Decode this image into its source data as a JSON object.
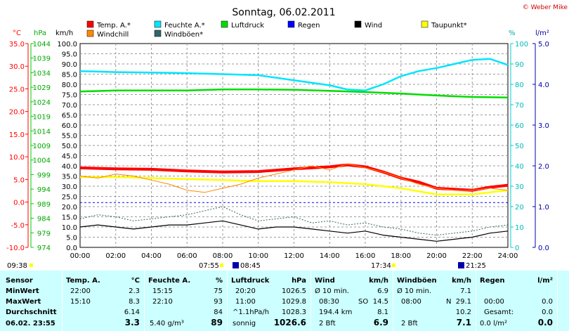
{
  "title": "Sonntag, 06.02.2011",
  "copyright": "© Weber Mike",
  "axis_units": {
    "celsius": "°C",
    "hpa": "hPa",
    "kmh": "km/h",
    "percent": "%",
    "rain": "l/m²",
    "rain_right": "l/m²"
  },
  "legend": [
    {
      "label": "Temp. A.*",
      "color": "#ff0000"
    },
    {
      "label": "Feuchte A.*",
      "color": "#00e5ff"
    },
    {
      "label": "Luftdruck",
      "color": "#00dd00"
    },
    {
      "label": "Regen",
      "color": "#0000ff"
    },
    {
      "label": "Wind",
      "color": "#000000"
    },
    {
      "label": "Taupunkt*",
      "color": "#ffff00"
    },
    {
      "label": "Windchill",
      "color": "#ff8800"
    },
    {
      "label": "Windböen*",
      "color": "#336666"
    }
  ],
  "markers": {
    "sunrise_left": "09:38",
    "sunrise": "07:55",
    "sun_left_time": "08:45",
    "sunset": "17:34",
    "sun_right_time": "21:25"
  },
  "chart_data": {
    "type": "line",
    "x_ticks": [
      "00:00",
      "02:00",
      "04:00",
      "06:00",
      "08:00",
      "10:00",
      "12:00",
      "14:00",
      "16:00",
      "18:00",
      "20:00",
      "22:00",
      "24:00"
    ],
    "y_ticks_celsius": [
      "35.0",
      "30.0",
      "25.0",
      "20.0",
      "15.0",
      "10.0",
      "5.0",
      "0.0",
      "-5.0",
      "-10.0"
    ],
    "y_ticks_hpa": [
      "1044",
      "1039",
      "1034",
      "1029",
      "1024",
      "1019",
      "1014",
      "1009",
      "1004",
      "999",
      "994",
      "989",
      "984",
      "979",
      "974"
    ],
    "y_ticks_kmh": [
      "100.0",
      "95.0",
      "90.0",
      "85.0",
      "80.0",
      "75.0",
      "70.0",
      "65.0",
      "60.0",
      "55.0",
      "50.0",
      "45.0",
      "40.0",
      "35.0",
      "30.0",
      "25.0",
      "20.0",
      "15.0",
      "10.0",
      "5.0",
      "0.0"
    ],
    "y_ticks_percent": [
      "100",
      "90",
      "80",
      "70",
      "60",
      "50",
      "40",
      "30",
      "20",
      "10",
      "0"
    ],
    "y_ticks_rain": [
      "5.0",
      "4.0",
      "3.0",
      "2.0",
      "1.0",
      "0.0"
    ],
    "kmh_range": [
      0,
      100
    ],
    "x_range": [
      0,
      24
    ],
    "series": [
      {
        "name": "Temp. A.*",
        "unit": "km/h-scale",
        "color": "#ff0000",
        "points": [
          [
            0,
            39
          ],
          [
            2,
            38.5
          ],
          [
            4,
            38.3
          ],
          [
            6,
            37.5
          ],
          [
            8,
            37
          ],
          [
            10,
            37.2
          ],
          [
            12,
            38.5
          ],
          [
            14,
            39.5
          ],
          [
            15,
            40.5
          ],
          [
            16,
            39.5
          ],
          [
            17,
            37
          ],
          [
            18,
            34
          ],
          [
            19,
            32
          ],
          [
            20,
            29
          ],
          [
            22,
            28
          ],
          [
            23,
            29.5
          ],
          [
            24,
            30.5
          ]
        ]
      },
      {
        "name": "Feuchte A.*",
        "unit": "km/h-scale",
        "color": "#00e5ff",
        "points": [
          [
            0,
            86.5
          ],
          [
            2,
            86
          ],
          [
            4,
            85.8
          ],
          [
            6,
            85.5
          ],
          [
            8,
            85
          ],
          [
            10,
            84.5
          ],
          [
            12,
            82
          ],
          [
            14,
            79.5
          ],
          [
            15,
            77.5
          ],
          [
            16,
            77
          ],
          [
            17,
            80
          ],
          [
            18,
            84
          ],
          [
            19,
            86.5
          ],
          [
            20,
            88
          ],
          [
            21,
            90
          ],
          [
            22,
            92
          ],
          [
            23,
            92.5
          ],
          [
            24,
            89.5
          ]
        ]
      },
      {
        "name": "Luftdruck",
        "unit": "km/h-scale",
        "color": "#00dd00",
        "points": [
          [
            0,
            76.5
          ],
          [
            2,
            77
          ],
          [
            4,
            77
          ],
          [
            6,
            77
          ],
          [
            8,
            77.5
          ],
          [
            10,
            77.5
          ],
          [
            12,
            77.3
          ],
          [
            14,
            76.8
          ],
          [
            16,
            76.2
          ],
          [
            18,
            75.5
          ],
          [
            20,
            74.5
          ],
          [
            22,
            73.8
          ],
          [
            24,
            73.5
          ]
        ]
      },
      {
        "name": "Taupunkt*",
        "unit": "km/h-scale",
        "color": "#ffff00",
        "points": [
          [
            0,
            34.5
          ],
          [
            2,
            34.5
          ],
          [
            4,
            34
          ],
          [
            6,
            33.5
          ],
          [
            8,
            33
          ],
          [
            10,
            32.5
          ],
          [
            12,
            32.5
          ],
          [
            14,
            32
          ],
          [
            16,
            31
          ],
          [
            18,
            29
          ],
          [
            20,
            26
          ],
          [
            22,
            26
          ],
          [
            24,
            28
          ]
        ]
      },
      {
        "name": "Windchill",
        "unit": "km/h-scale",
        "color": "#ff8800",
        "points": [
          [
            0,
            35
          ],
          [
            1,
            34
          ],
          [
            2,
            36
          ],
          [
            3,
            35
          ],
          [
            4,
            33
          ],
          [
            5,
            31
          ],
          [
            6,
            28
          ],
          [
            7,
            27
          ],
          [
            8,
            29
          ],
          [
            9,
            31
          ],
          [
            10,
            34
          ],
          [
            11,
            36
          ],
          [
            12,
            38
          ],
          [
            13,
            40
          ],
          [
            14,
            38
          ],
          [
            15,
            41
          ],
          [
            16,
            39
          ],
          [
            17,
            37
          ],
          [
            18,
            34
          ],
          [
            19,
            31
          ],
          [
            20,
            29
          ],
          [
            21,
            28
          ],
          [
            22,
            28
          ],
          [
            23,
            29
          ],
          [
            24,
            28
          ]
        ]
      },
      {
        "name": "Windböen*",
        "unit": "km/h-scale",
        "color": "#336666",
        "points": [
          [
            0,
            14
          ],
          [
            1,
            16
          ],
          [
            2,
            15
          ],
          [
            3,
            13
          ],
          [
            4,
            14
          ],
          [
            5,
            15
          ],
          [
            6,
            16
          ],
          [
            7,
            18
          ],
          [
            8,
            20
          ],
          [
            9,
            16
          ],
          [
            10,
            13
          ],
          [
            11,
            14
          ],
          [
            12,
            15
          ],
          [
            13,
            12
          ],
          [
            14,
            13
          ],
          [
            15,
            11
          ],
          [
            16,
            12
          ],
          [
            17,
            10
          ],
          [
            18,
            9
          ],
          [
            19,
            7
          ],
          [
            20,
            6
          ],
          [
            21,
            7
          ],
          [
            22,
            8
          ],
          [
            23,
            10
          ],
          [
            24,
            11
          ]
        ]
      },
      {
        "name": "Wind",
        "unit": "km/h-scale",
        "color": "#000000",
        "points": [
          [
            0,
            10
          ],
          [
            1,
            11
          ],
          [
            2,
            10
          ],
          [
            3,
            9
          ],
          [
            4,
            10
          ],
          [
            5,
            11
          ],
          [
            6,
            11
          ],
          [
            7,
            12
          ],
          [
            8,
            13
          ],
          [
            9,
            11
          ],
          [
            10,
            9
          ],
          [
            11,
            10
          ],
          [
            12,
            10
          ],
          [
            13,
            9
          ],
          [
            14,
            8
          ],
          [
            15,
            7
          ],
          [
            16,
            8
          ],
          [
            17,
            6
          ],
          [
            18,
            5
          ],
          [
            19,
            4
          ],
          [
            20,
            3
          ],
          [
            21,
            4
          ],
          [
            22,
            5
          ],
          [
            23,
            7
          ],
          [
            24,
            8
          ]
        ]
      },
      {
        "name": "Regen",
        "unit": "km/h-scale",
        "color": "#0000ff",
        "points": [
          [
            0,
            22
          ],
          [
            24,
            22
          ]
        ]
      }
    ]
  },
  "table": {
    "headers": {
      "sensor": "Sensor",
      "temp": "Temp. A.",
      "temp_unit": "°C",
      "feuchte": "Feuchte A.",
      "feuchte_unit": "%",
      "luftdruck": "Luftdruck",
      "luftdruck_unit": "hPa",
      "wind": "Wind",
      "wind_unit": "km/h",
      "windboen": "Windböen",
      "windboen_unit": "km/h",
      "regen": "Regen",
      "regen_unit": "l/m²"
    },
    "rows": [
      {
        "label": "MinWert",
        "temp_t": "22:00",
        "temp_v": "2.3",
        "feu_t": "15:15",
        "feu_v": "75",
        "lu_t": "20:20",
        "lu_v": "1026.5",
        "wi_t": "Ø 10 min.",
        "wi_v": "6.9",
        "wb_t": "Ø 10 min.",
        "wb_v": "7.1",
        "re_t": "",
        "re_v": ""
      },
      {
        "label": "MaxWert",
        "temp_t": "15:10",
        "temp_v": "8.3",
        "feu_t": "22:10",
        "feu_v": "93",
        "lu_t": "11:00",
        "lu_v": "1029.8",
        "wi_t": "08:30",
        "wi_m": "SO",
        "wi_v": "14.5",
        "wb_t": "08:00",
        "wb_m": "N",
        "wb_v": "29.1",
        "re_t": "00:00",
        "re_v": "0.0"
      },
      {
        "label": "Durchschnitt",
        "temp_t": "",
        "temp_v": "6.14",
        "feu_t": "",
        "feu_v": "84",
        "lu_t": "^1.1hPa/h",
        "lu_v": "1028.3",
        "wi_t": "194.4 km",
        "wi_v": "8.1",
        "wb_t": "",
        "wb_v": "10.2",
        "re_t": "Gesamt:",
        "re_v": "0.0"
      },
      {
        "label": "06.02. 23:55",
        "temp_t": "",
        "temp_v": "3.3",
        "feu_t": "5.40 g/m³",
        "feu_v": "89",
        "lu_t": "sonnig",
        "lu_v": "1026.6",
        "wi_t": "2 Bft",
        "wi_v": "6.9",
        "wb_t": "2 Bft",
        "wb_v": "7.1",
        "re_t": "0.0 l/m²",
        "re_v": "0.0"
      }
    ]
  }
}
